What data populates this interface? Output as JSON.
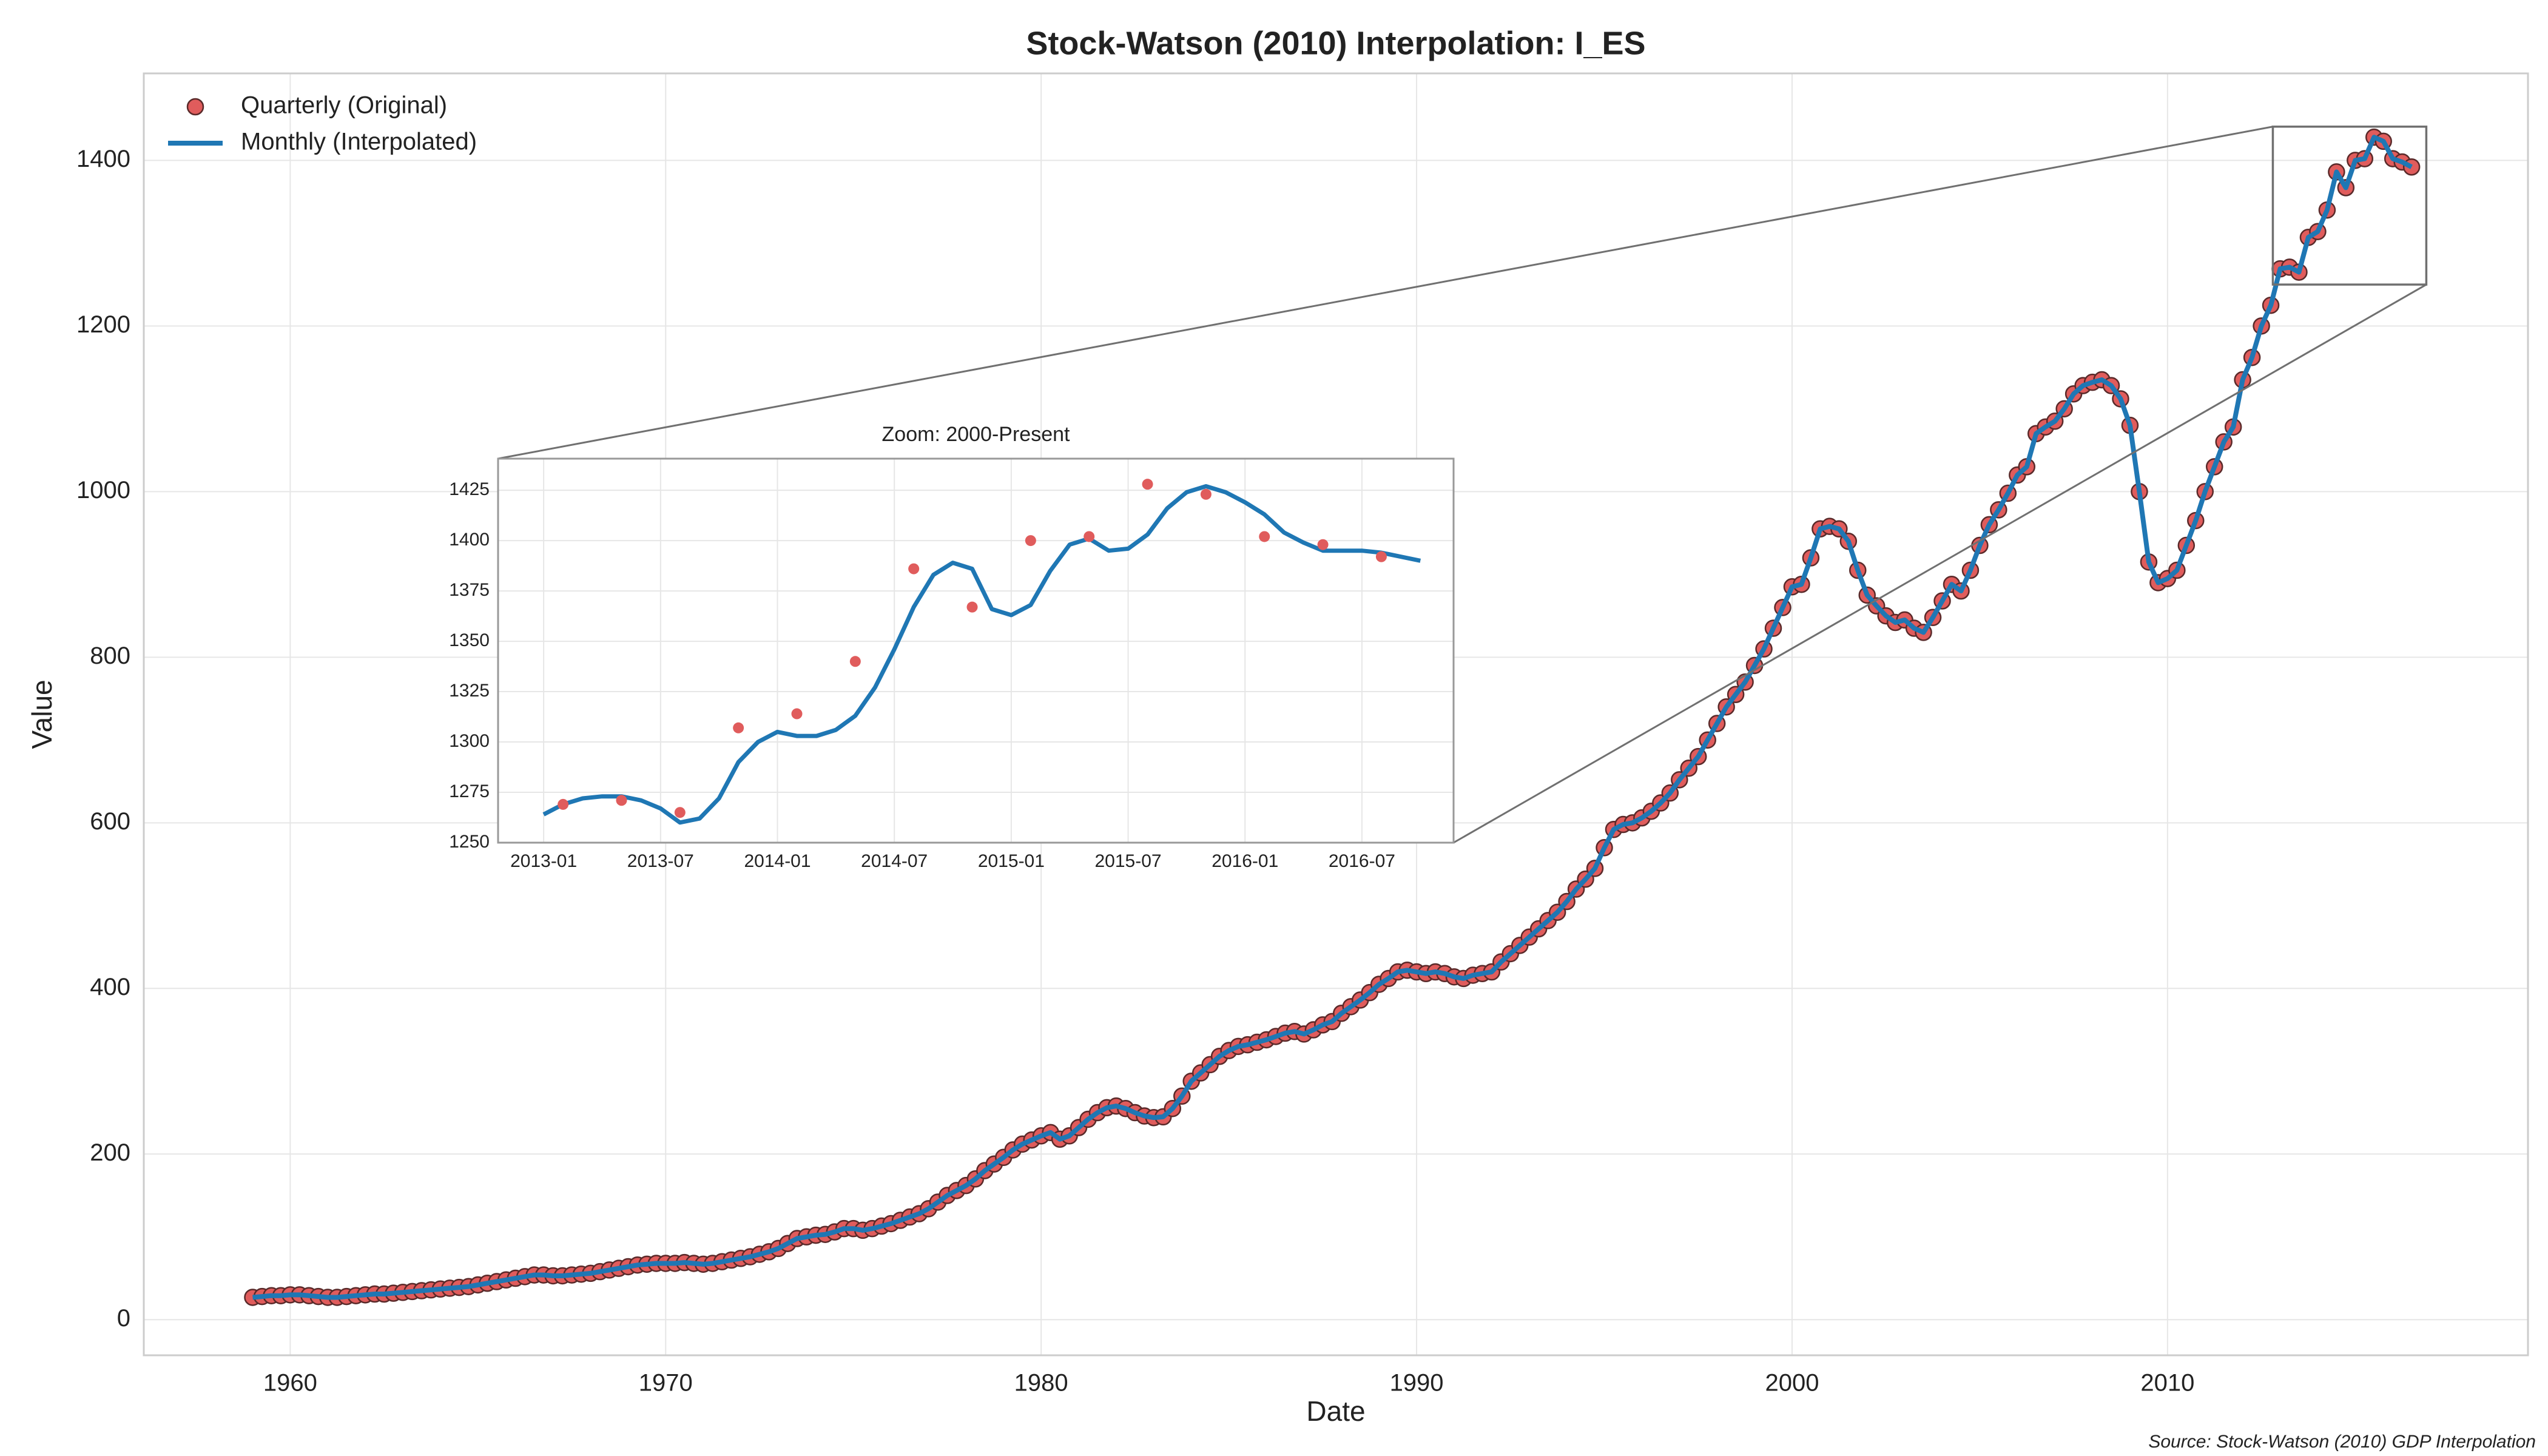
{
  "chart_data": [
    {
      "type": "line",
      "title": "Stock-Watson (2010) Interpolation: I_ES",
      "xlabel": "Date",
      "ylabel": "Value",
      "source": "Source: Stock-Watson (2010) GDP Interpolation",
      "legend": "upper left",
      "grid": true,
      "xlim": [
        1956.1,
        2019.6
      ],
      "ylim": [
        -43,
        1505
      ],
      "xticks": [
        1960,
        1970,
        1980,
        1990,
        2000,
        2010
      ],
      "yticks": [
        0,
        200,
        400,
        600,
        800,
        1000,
        1200,
        1400
      ],
      "x": [
        1959,
        1959.25,
        1959.5,
        1959.75,
        1960,
        1960.25,
        1960.5,
        1960.75,
        1961,
        1961.25,
        1961.5,
        1961.75,
        1962,
        1962.25,
        1962.5,
        1962.75,
        1963,
        1963.25,
        1963.5,
        1963.75,
        1964,
        1964.25,
        1964.5,
        1964.75,
        1965,
        1965.25,
        1965.5,
        1965.75,
        1966,
        1966.25,
        1966.5,
        1966.75,
        1967,
        1967.25,
        1967.5,
        1967.75,
        1968,
        1968.25,
        1968.5,
        1968.75,
        1969,
        1969.25,
        1969.5,
        1969.75,
        1970,
        1970.25,
        1970.5,
        1970.75,
        1971,
        1971.25,
        1971.5,
        1971.75,
        1972,
        1972.25,
        1972.5,
        1972.75,
        1973,
        1973.25,
        1973.5,
        1973.75,
        1974,
        1974.25,
        1974.5,
        1974.75,
        1975,
        1975.25,
        1975.5,
        1975.75,
        1976,
        1976.25,
        1976.5,
        1976.75,
        1977,
        1977.25,
        1977.5,
        1977.75,
        1978,
        1978.25,
        1978.5,
        1978.75,
        1979,
        1979.25,
        1979.5,
        1979.75,
        1980,
        1980.25,
        1980.5,
        1980.75,
        1981,
        1981.25,
        1981.5,
        1981.75,
        1982,
        1982.25,
        1982.5,
        1982.75,
        1983,
        1983.25,
        1983.5,
        1983.75,
        1984,
        1984.25,
        1984.5,
        1984.75,
        1985,
        1985.25,
        1985.5,
        1985.75,
        1986,
        1986.25,
        1986.5,
        1986.75,
        1987,
        1987.25,
        1987.5,
        1987.75,
        1988,
        1988.25,
        1988.5,
        1988.75,
        1989,
        1989.25,
        1989.5,
        1989.75,
        1990,
        1990.25,
        1990.5,
        1990.75,
        1991,
        1991.25,
        1991.5,
        1991.75,
        1992,
        1992.25,
        1992.5,
        1992.75,
        1993,
        1993.25,
        1993.5,
        1993.75,
        1994,
        1994.25,
        1994.5,
        1994.75,
        1995,
        1995.25,
        1995.5,
        1995.75,
        1996,
        1996.25,
        1996.5,
        1996.75,
        1997,
        1997.25,
        1997.5,
        1997.75,
        1998,
        1998.25,
        1998.5,
        1998.75,
        1999,
        1999.25,
        1999.5,
        1999.75,
        2000,
        2000.25,
        2000.5,
        2000.75,
        2001,
        2001.25,
        2001.5,
        2001.75,
        2002,
        2002.25,
        2002.5,
        2002.75,
        2003,
        2003.25,
        2003.5,
        2003.75,
        2004,
        2004.25,
        2004.5,
        2004.75,
        2005,
        2005.25,
        2005.5,
        2005.75,
        2006,
        2006.25,
        2006.5,
        2006.75,
        2007,
        2007.25,
        2007.5,
        2007.75,
        2008,
        2008.25,
        2008.5,
        2008.75,
        2009,
        2009.25,
        2009.5,
        2009.75,
        2010,
        2010.25,
        2010.5,
        2010.75,
        2011,
        2011.25,
        2011.5,
        2011.75,
        2012,
        2012.25,
        2012.5,
        2012.75,
        2013,
        2013.25,
        2013.5,
        2013.75,
        2014,
        2014.25,
        2014.5,
        2014.75,
        2015,
        2015.25,
        2015.5,
        2015.75,
        2016,
        2016.25,
        2016.5
      ],
      "series": [
        {
          "name": "Quarterly (Original)",
          "type": "scatter",
          "color": "#e05c5c",
          "edgecolor": "#5a2a2a",
          "values": [
            27,
            28,
            29,
            29,
            30,
            30,
            29,
            28,
            27,
            27,
            28,
            29,
            30,
            31,
            31,
            32,
            33,
            34,
            35,
            36,
            37,
            38,
            39,
            40,
            42,
            44,
            46,
            48,
            50,
            52,
            54,
            54,
            53,
            53,
            54,
            55,
            56,
            58,
            60,
            62,
            64,
            66,
            67,
            68,
            68,
            68,
            69,
            68,
            67,
            68,
            70,
            72,
            74,
            76,
            79,
            82,
            86,
            92,
            98,
            100,
            102,
            103,
            106,
            110,
            110,
            108,
            110,
            113,
            116,
            120,
            124,
            128,
            134,
            142,
            150,
            156,
            162,
            170,
            180,
            188,
            196,
            205,
            212,
            217,
            222,
            226,
            218,
            222,
            232,
            242,
            250,
            256,
            258,
            255,
            250,
            246,
            244,
            245,
            255,
            270,
            288,
            298,
            308,
            318,
            325,
            330,
            332,
            335,
            338,
            342,
            346,
            348,
            345,
            350,
            356,
            360,
            370,
            378,
            386,
            395,
            405,
            412,
            420,
            422,
            420,
            418,
            420,
            418,
            414,
            412,
            416,
            418,
            420,
            432,
            442,
            452,
            462,
            472,
            482,
            492,
            505,
            520,
            532,
            545,
            570,
            592,
            598,
            600,
            606,
            614,
            624,
            636,
            652,
            666,
            680,
            700,
            720,
            740,
            755,
            770,
            790,
            810,
            835,
            860,
            885,
            888,
            920,
            955,
            958,
            955,
            940,
            905,
            875,
            862,
            850,
            842,
            845,
            835,
            830,
            848,
            868,
            888,
            880,
            905,
            935,
            960,
            978,
            998,
            1020,
            1030,
            1070,
            1078,
            1085,
            1100,
            1118,
            1128,
            1132,
            1135,
            1128,
            1112,
            1080,
            1000,
            915,
            890,
            895,
            905,
            935,
            965,
            1000,
            1030,
            1060,
            1078,
            1135,
            1162,
            1200,
            1225,
            1269,
            1271,
            1265,
            1307,
            1314,
            1340,
            1386,
            1367,
            1400,
            1402,
            1428,
            1423,
            1402,
            1398,
            1392
          ]
        },
        {
          "name": "Monthly (Interpolated)",
          "type": "line",
          "color": "#1f77b4",
          "values": [
            27,
            28,
            29,
            29,
            30,
            30,
            29,
            28,
            27,
            27,
            28,
            29,
            30,
            31,
            31,
            32,
            33,
            34,
            35,
            36,
            37,
            38,
            39,
            40,
            42,
            44,
            46,
            48,
            50,
            52,
            54,
            54,
            53,
            53,
            54,
            55,
            56,
            58,
            60,
            62,
            64,
            66,
            67,
            68,
            68,
            68,
            69,
            68,
            67,
            68,
            70,
            72,
            74,
            76,
            79,
            82,
            86,
            92,
            98,
            100,
            102,
            103,
            106,
            110,
            110,
            108,
            110,
            113,
            116,
            120,
            124,
            128,
            134,
            142,
            150,
            156,
            162,
            170,
            180,
            188,
            196,
            205,
            212,
            217,
            222,
            226,
            218,
            222,
            232,
            242,
            250,
            256,
            258,
            255,
            250,
            246,
            244,
            245,
            255,
            270,
            288,
            298,
            308,
            318,
            325,
            330,
            332,
            335,
            338,
            342,
            346,
            348,
            345,
            350,
            356,
            360,
            370,
            378,
            386,
            395,
            405,
            412,
            420,
            422,
            420,
            418,
            420,
            418,
            414,
            412,
            416,
            418,
            420,
            432,
            442,
            452,
            462,
            472,
            482,
            492,
            505,
            520,
            532,
            545,
            570,
            592,
            598,
            600,
            606,
            614,
            624,
            636,
            652,
            666,
            680,
            700,
            720,
            740,
            755,
            770,
            790,
            810,
            835,
            860,
            885,
            888,
            920,
            955,
            958,
            955,
            940,
            905,
            875,
            862,
            850,
            842,
            845,
            835,
            830,
            848,
            868,
            888,
            880,
            905,
            935,
            960,
            978,
            998,
            1020,
            1030,
            1070,
            1078,
            1085,
            1100,
            1118,
            1128,
            1132,
            1135,
            1128,
            1112,
            1080,
            1000,
            915,
            890,
            895,
            905,
            935,
            965,
            1000,
            1030,
            1060,
            1078,
            1135,
            1162,
            1200,
            1225,
            1269,
            1271,
            1265,
            1307,
            1314,
            1340,
            1386,
            1367,
            1400,
            1402,
            1428,
            1423,
            1402,
            1398,
            1392
          ]
        }
      ]
    },
    {
      "type": "line",
      "title": "Zoom: 2000-Present",
      "grid": true,
      "xlim": [
        2012.805,
        2016.892
      ],
      "ylim": [
        1250,
        1440.7
      ],
      "xticks": [
        {
          "value": 2013,
          "label": "2013-01"
        },
        {
          "value": 2013.5,
          "label": "2013-07"
        },
        {
          "value": 2014,
          "label": "2014-01"
        },
        {
          "value": 2014.5,
          "label": "2014-07"
        },
        {
          "value": 2015,
          "label": "2015-01"
        },
        {
          "value": 2015.5,
          "label": "2015-07"
        },
        {
          "value": 2016,
          "label": "2016-01"
        },
        {
          "value": 2016.5,
          "label": "2016-07"
        }
      ],
      "yticks": [
        1250,
        1275,
        1300,
        1325,
        1350,
        1375,
        1400,
        1425
      ],
      "series": [
        {
          "type": "line",
          "color": "#1f77b4",
          "x": [
            2013,
            2013.083,
            2013.167,
            2013.25,
            2013.333,
            2013.417,
            2013.5,
            2013.583,
            2013.667,
            2013.75,
            2013.833,
            2013.917,
            2014,
            2014.083,
            2014.167,
            2014.25,
            2014.333,
            2014.417,
            2014.5,
            2014.583,
            2014.667,
            2014.75,
            2014.833,
            2014.917,
            2015,
            2015.083,
            2015.167,
            2015.25,
            2015.333,
            2015.417,
            2015.5,
            2015.583,
            2015.667,
            2015.75,
            2015.833,
            2015.917,
            2016,
            2016.083,
            2016.167,
            2016.25,
            2016.333,
            2016.417,
            2016.5,
            2016.583,
            2016.667,
            2016.75
          ],
          "values": [
            1264,
            1269,
            1272,
            1273,
            1273,
            1271,
            1267,
            1260,
            1262,
            1272,
            1290,
            1300,
            1305,
            1303,
            1303,
            1306,
            1313,
            1327,
            1346,
            1367,
            1383,
            1389,
            1386,
            1366,
            1363,
            1368,
            1385,
            1398,
            1401,
            1395,
            1396,
            1403,
            1416,
            1424,
            1427,
            1424,
            1419,
            1413,
            1404,
            1399,
            1395,
            1395,
            1395,
            1394,
            1392,
            1390
          ]
        },
        {
          "type": "scatter",
          "color": "#e05c5c",
          "x": [
            2013.083,
            2013.333,
            2013.583,
            2013.833,
            2014.083,
            2014.333,
            2014.583,
            2014.833,
            2015.083,
            2015.333,
            2015.583,
            2015.833,
            2016.083,
            2016.333,
            2016.583
          ],
          "values": [
            1269,
            1271,
            1265,
            1307,
            1314,
            1340,
            1386,
            1367,
            1400,
            1402,
            1428,
            1423,
            1402,
            1398,
            1392
          ]
        }
      ]
    }
  ]
}
